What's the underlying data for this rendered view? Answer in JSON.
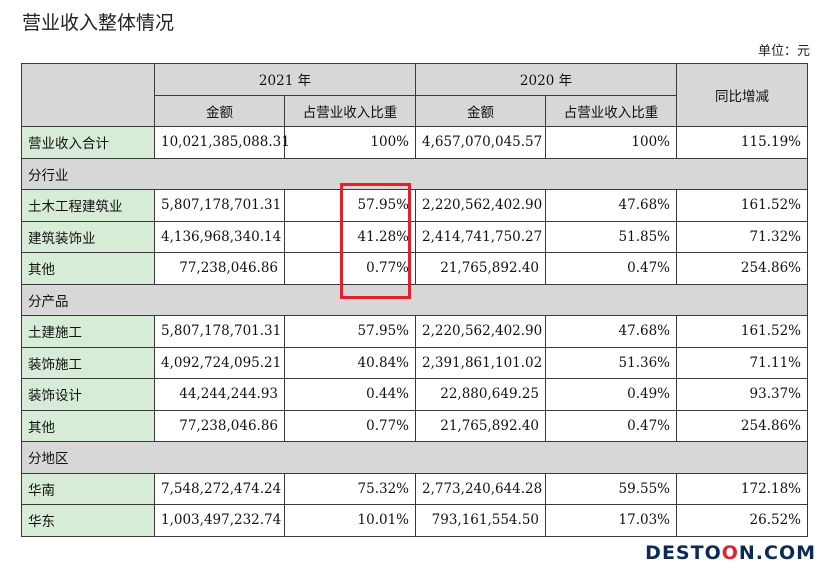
{
  "title": "营业收入整体情况",
  "unit": "单位：元",
  "header": {
    "year_2021": "2021 年",
    "year_2020": "2020 年",
    "amount": "金额",
    "ratio": "占营业收入比重",
    "yoy": "同比增减"
  },
  "total": {
    "label": "营业收入合计",
    "amt2021": "10,021,385,088.31",
    "pct2021": "100%",
    "amt2020": "4,657,070,045.57",
    "pct2020": "100%",
    "yoy": "115.19%"
  },
  "sections": [
    {
      "title": "分行业",
      "rows": [
        {
          "label": "土木工程建筑业",
          "amt2021": "5,807,178,701.31",
          "pct2021": "57.95%",
          "amt2020": "2,220,562,402.90",
          "pct2020": "47.68%",
          "yoy": "161.52%"
        },
        {
          "label": "建筑装饰业",
          "amt2021": "4,136,968,340.14",
          "pct2021": "41.28%",
          "amt2020": "2,414,741,750.27",
          "pct2020": "51.85%",
          "yoy": "71.32%"
        },
        {
          "label": "其他",
          "amt2021": "77,238,046.86",
          "pct2021": "0.77%",
          "amt2020": "21,765,892.40",
          "pct2020": "0.47%",
          "yoy": "254.86%"
        }
      ]
    },
    {
      "title": "分产品",
      "rows": [
        {
          "label": "土建施工",
          "amt2021": "5,807,178,701.31",
          "pct2021": "57.95%",
          "amt2020": "2,220,562,402.90",
          "pct2020": "47.68%",
          "yoy": "161.52%"
        },
        {
          "label": "装饰施工",
          "amt2021": "4,092,724,095.21",
          "pct2021": "40.84%",
          "amt2020": "2,391,861,101.02",
          "pct2020": "51.36%",
          "yoy": "71.11%"
        },
        {
          "label": "装饰设计",
          "amt2021": "44,244,244.93",
          "pct2021": "0.44%",
          "amt2020": "22,880,649.25",
          "pct2020": "0.49%",
          "yoy": "93.37%"
        },
        {
          "label": "其他",
          "amt2021": "77,238,046.86",
          "pct2021": "0.77%",
          "amt2020": "21,765,892.40",
          "pct2020": "0.47%",
          "yoy": "254.86%"
        }
      ]
    },
    {
      "title": "分地区",
      "rows": [
        {
          "label": "华南",
          "amt2021": "7,548,272,474.24",
          "pct2021": "75.32%",
          "amt2020": "2,773,240,644.28",
          "pct2020": "59.55%",
          "yoy": "172.18%"
        },
        {
          "label": "华东",
          "amt2021": "1,003,497,232.74",
          "pct2021": "10.01%",
          "amt2020": "793,161,554.50",
          "pct2020": "17.03%",
          "yoy": "26.52%"
        }
      ]
    }
  ],
  "watermark": {
    "part1": "DESTO",
    "part2": "O",
    "part3": "N.COM"
  }
}
